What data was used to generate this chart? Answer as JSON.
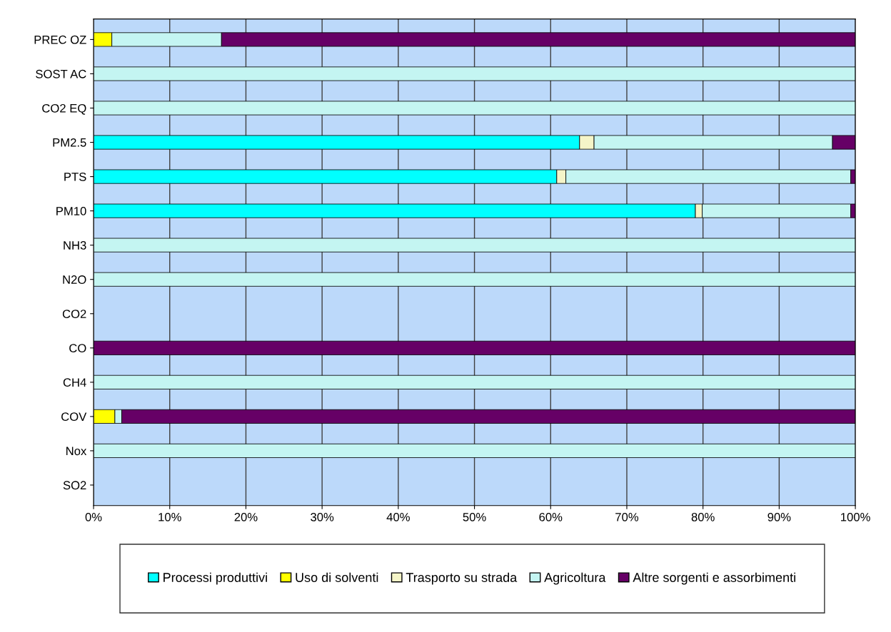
{
  "chart_data": {
    "type": "bar",
    "orientation": "horizontal",
    "stacked": true,
    "categories": [
      "PREC OZ",
      "SOST AC",
      "CO2 EQ",
      "PM2.5",
      "PTS",
      "PM10",
      "NH3",
      "N2O",
      "CO2",
      "CO",
      "CH4",
      "COV",
      "Nox",
      "SO2"
    ],
    "series": [
      {
        "name": "Processi produttivi",
        "color": "#00ffff",
        "values": [
          0,
          0,
          0,
          63.8,
          60.8,
          79.0,
          0,
          0,
          0,
          0,
          0,
          0,
          0,
          0
        ]
      },
      {
        "name": "Uso di solventi",
        "color": "#ffff00",
        "values": [
          2.4,
          0,
          0,
          0,
          0,
          0,
          0,
          0,
          0,
          0,
          0,
          2.8,
          0,
          0
        ]
      },
      {
        "name": "Trasporto su strada",
        "color": "#f5f5c8",
        "values": [
          0,
          0,
          0,
          1.9,
          1.2,
          0.9,
          0,
          0,
          0,
          0,
          0,
          0,
          0,
          0
        ]
      },
      {
        "name": "Agricoltura",
        "color": "#c4f5f2",
        "values": [
          14.4,
          100,
          100,
          31.3,
          37.4,
          19.5,
          100,
          100,
          0,
          0,
          100,
          0.9,
          100,
          0
        ]
      },
      {
        "name": "Altre sorgenti e assorbimenti",
        "color": "#660066",
        "values": [
          83.2,
          0,
          0,
          3.0,
          0.6,
          0.6,
          0,
          0,
          0,
          100,
          0,
          96.3,
          0,
          0
        ]
      }
    ],
    "xlim": [
      0,
      100
    ],
    "xticks": [
      {
        "value": 0,
        "label": "0%"
      },
      {
        "value": 10,
        "label": "10%"
      },
      {
        "value": 20,
        "label": "20%"
      },
      {
        "value": 30,
        "label": "30%"
      },
      {
        "value": 40,
        "label": "40%"
      },
      {
        "value": 50,
        "label": "50%"
      },
      {
        "value": 60,
        "label": "60%"
      },
      {
        "value": 70,
        "label": "70%"
      },
      {
        "value": 80,
        "label": "80%"
      },
      {
        "value": 90,
        "label": "90%"
      },
      {
        "value": 100,
        "label": "100%"
      }
    ],
    "grid": "x",
    "legend": "bottom"
  }
}
